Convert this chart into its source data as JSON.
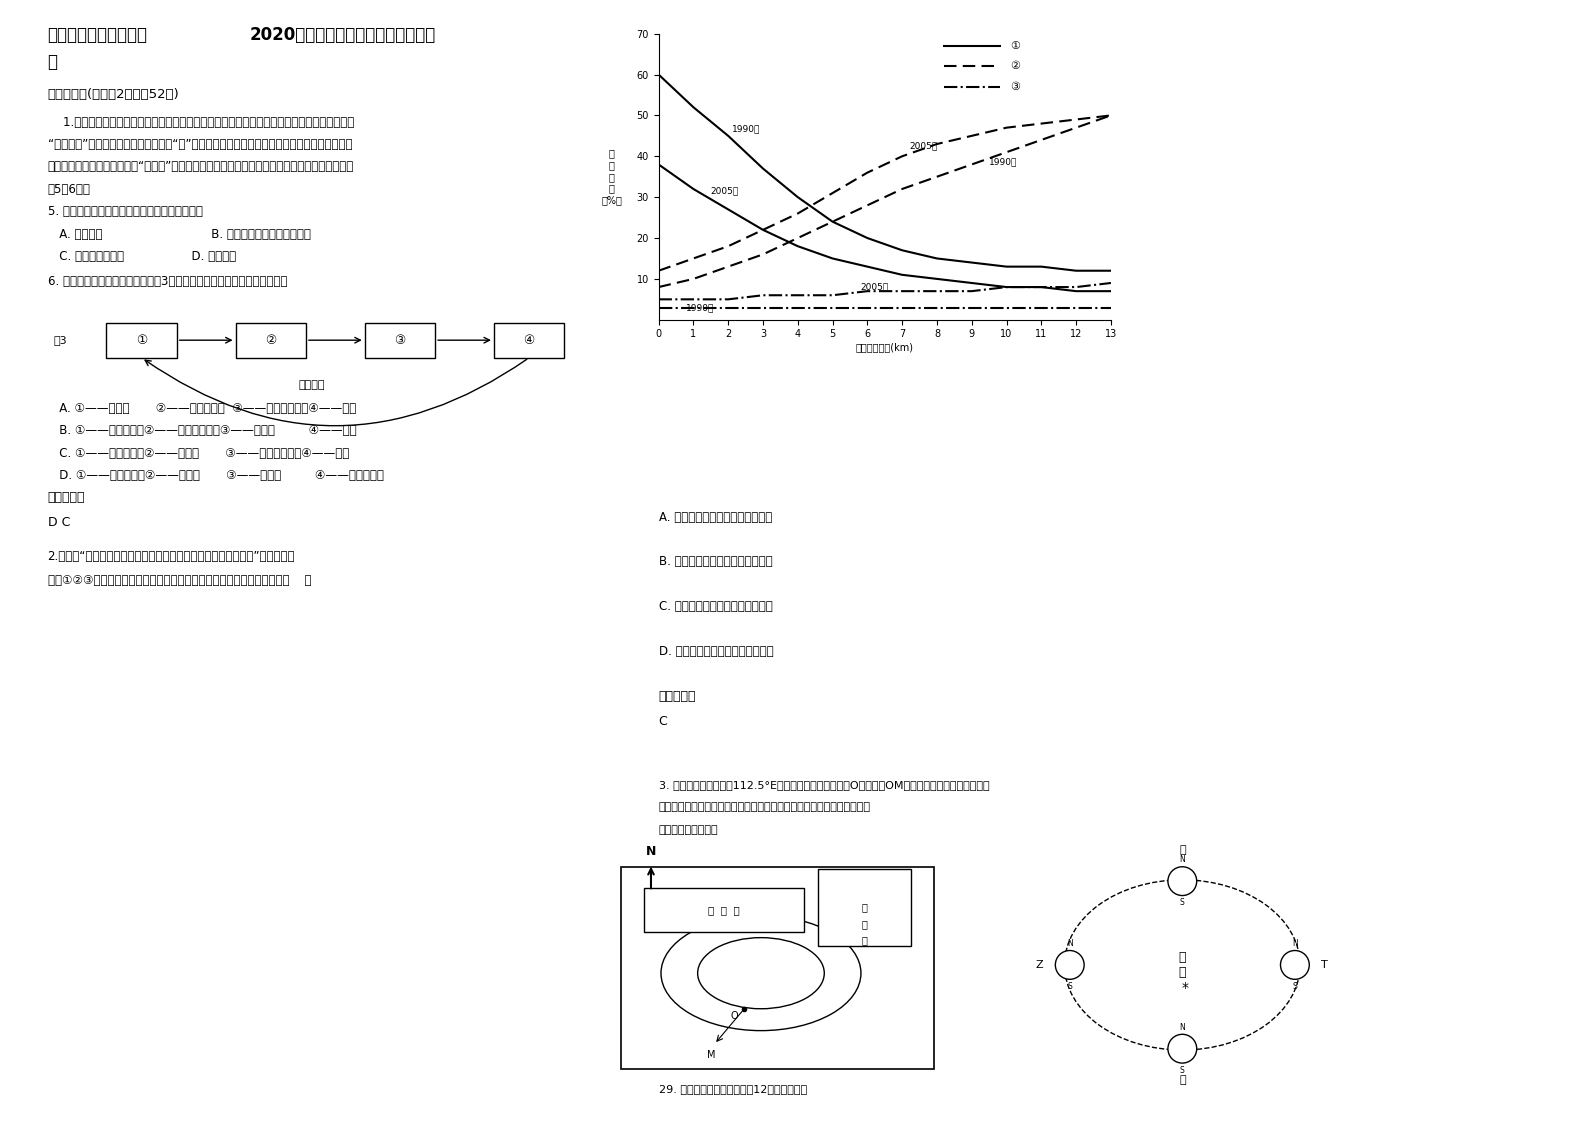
{
  "chart_ylim": [
    0,
    70
  ],
  "chart_xlim": [
    0,
    13
  ],
  "chart_yticks": [
    10,
    20,
    30,
    40,
    50,
    60,
    70
  ],
  "chart_xticks": [
    0,
    1,
    2,
    3,
    4,
    5,
    6,
    7,
    8,
    9,
    10,
    11,
    12,
    13
  ],
  "curve1_1990_x": [
    0,
    1,
    2,
    3,
    4,
    5,
    6,
    7,
    8,
    9,
    10,
    11,
    12,
    13
  ],
  "curve1_1990_y": [
    60,
    52,
    45,
    37,
    30,
    24,
    20,
    17,
    15,
    14,
    13,
    13,
    12,
    12
  ],
  "curve1_2005_x": [
    0,
    1,
    2,
    3,
    4,
    5,
    6,
    7,
    8,
    9,
    10,
    11,
    12,
    13
  ],
  "curve1_2005_y": [
    38,
    32,
    27,
    22,
    18,
    15,
    13,
    11,
    10,
    9,
    8,
    8,
    7,
    7
  ],
  "curve2_1990_x": [
    0,
    1,
    2,
    3,
    4,
    5,
    6,
    7,
    8,
    9,
    10,
    11,
    12,
    13
  ],
  "curve2_1990_y": [
    8,
    10,
    13,
    16,
    20,
    24,
    28,
    32,
    35,
    38,
    41,
    44,
    47,
    50
  ],
  "curve2_2005_x": [
    0,
    1,
    2,
    3,
    4,
    5,
    6,
    7,
    8,
    9,
    10,
    11,
    12,
    13
  ],
  "curve2_2005_y": [
    12,
    15,
    18,
    22,
    26,
    31,
    36,
    40,
    43,
    45,
    47,
    48,
    49,
    50
  ],
  "curve3_1990_x": [
    0,
    1,
    2,
    3,
    4,
    5,
    6,
    7,
    8,
    9,
    10,
    11,
    12,
    13
  ],
  "curve3_1990_y": [
    3,
    3,
    3,
    3,
    3,
    3,
    3,
    3,
    3,
    3,
    3,
    3,
    3,
    3
  ],
  "curve3_2005_x": [
    0,
    1,
    2,
    3,
    4,
    5,
    6,
    7,
    8,
    9,
    10,
    11,
    12,
    13
  ],
  "curve3_2005_y": [
    5,
    5,
    5,
    6,
    6,
    6,
    7,
    7,
    7,
    7,
    8,
    8,
    8,
    9
  ]
}
